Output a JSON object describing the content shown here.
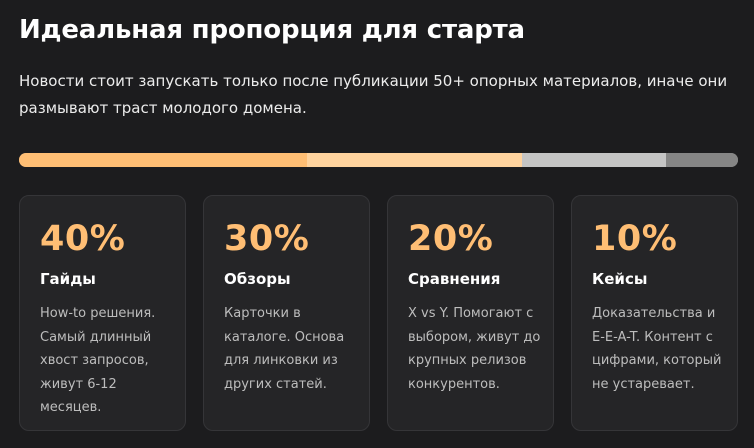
{
  "header": {
    "title": "Идеальная пропорция для старта",
    "subtitle": "Новости стоит запускать только после публикации 50+ опорных материалов, иначе они размывают траст молодого домена."
  },
  "proportion_bar": {
    "segments": [
      {
        "value": 40,
        "color": "#ffbe74"
      },
      {
        "value": 30,
        "color": "#ffd39e"
      },
      {
        "value": 20,
        "color": "#c4c4c4"
      },
      {
        "value": 10,
        "color": "#858585"
      }
    ]
  },
  "cards": [
    {
      "percent": "40%",
      "label": "Гайды",
      "text": "How-to решения. Самый длинный хвост запросов, живут 6-12 месяцев."
    },
    {
      "percent": "30%",
      "label": "Обзоры",
      "text": "Карточки в каталоге. Основа для линковки из других статей."
    },
    {
      "percent": "20%",
      "label": "Сравнения",
      "text": "X vs Y. Помогают с выбором, живут до крупных релизов конкурентов."
    },
    {
      "percent": "10%",
      "label": "Кейсы",
      "text": "Доказательства и E-E-A-T. Контент с цифрами, который не устаревает."
    }
  ]
}
